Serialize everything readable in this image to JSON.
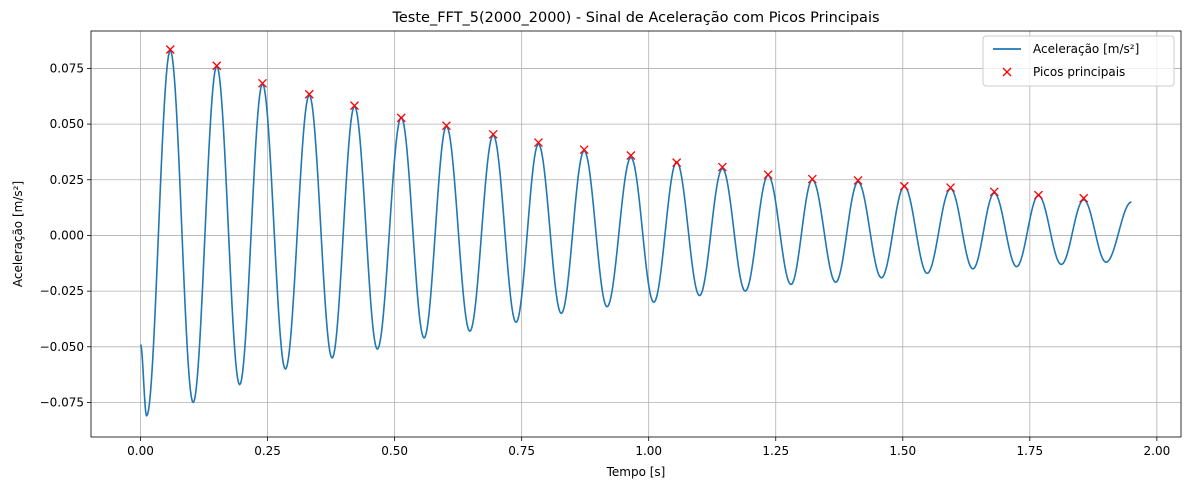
{
  "chart_data": {
    "type": "line",
    "title": "Teste_FFT_5(2000_2000) - Sinal de Aceleração com Picos Principais",
    "xlabel": "Tempo [s]",
    "ylabel": "Aceleração [m/s²]",
    "xlim": [
      -0.0975,
      2.0475
    ],
    "ylim": [
      -0.0905,
      0.0918
    ],
    "x_ticks": [
      0.0,
      0.25,
      0.5,
      0.75,
      1.0,
      1.25,
      1.5,
      1.75,
      2.0
    ],
    "x_tick_labels": [
      "0.00",
      "0.25",
      "0.50",
      "0.75",
      "1.00",
      "1.25",
      "1.50",
      "1.75",
      "2.00"
    ],
    "y_ticks": [
      -0.075,
      -0.05,
      -0.025,
      0.0,
      0.025,
      0.05,
      0.075
    ],
    "y_tick_labels": [
      "−0.075",
      "−0.050",
      "−0.025",
      "0.000",
      "0.025",
      "0.050",
      "0.075"
    ],
    "grid": true,
    "legend_position": "top-right",
    "colors": {
      "signal": "#1f77b4",
      "peaks": "#ff0000",
      "grid": "#b0b0b0"
    },
    "series": [
      {
        "name": "Aceleração [m/s²]",
        "kind": "line",
        "description": "damped oscillation sampled from 0.00 s to 1.95 s",
        "x": [
          0.0,
          0.012,
          0.0585,
          0.1035,
          0.15,
          0.195,
          0.24,
          0.285,
          0.332,
          0.377,
          0.421,
          0.466,
          0.513,
          0.558,
          0.602,
          0.648,
          0.694,
          0.739,
          0.783,
          0.828,
          0.873,
          0.918,
          0.965,
          1.01,
          1.055,
          1.1,
          1.145,
          1.19,
          1.235,
          1.28,
          1.322,
          1.368,
          1.412,
          1.458,
          1.503,
          1.548,
          1.594,
          1.638,
          1.68,
          1.724,
          1.767,
          1.812,
          1.856,
          1.9,
          1.95
        ],
        "y": [
          -0.049,
          -0.081,
          0.083,
          -0.075,
          0.076,
          -0.067,
          0.068,
          -0.06,
          0.063,
          -0.055,
          0.058,
          -0.051,
          0.053,
          -0.046,
          0.049,
          -0.043,
          0.045,
          -0.039,
          0.041,
          -0.035,
          0.038,
          -0.032,
          0.035,
          -0.03,
          0.033,
          -0.027,
          0.03,
          -0.025,
          0.027,
          -0.022,
          0.025,
          -0.021,
          0.024,
          -0.019,
          0.022,
          -0.017,
          0.021,
          -0.015,
          0.019,
          -0.014,
          0.018,
          -0.013,
          0.016,
          -0.012,
          0.015
        ]
      },
      {
        "name": "Picos principais",
        "kind": "marker",
        "marker": "x",
        "x": [
          0.0585,
          0.15,
          0.24,
          0.332,
          0.421,
          0.513,
          0.602,
          0.694,
          0.783,
          0.873,
          0.965,
          1.055,
          1.145,
          1.235,
          1.322,
          1.412,
          1.503,
          1.594,
          1.68,
          1.767,
          1.856
        ],
        "y": [
          0.0835,
          0.0762,
          0.0683,
          0.0634,
          0.0583,
          0.0528,
          0.0493,
          0.0454,
          0.0417,
          0.0385,
          0.0359,
          0.0327,
          0.0307,
          0.0273,
          0.0253,
          0.0247,
          0.0221,
          0.0215,
          0.0196,
          0.0181,
          0.0167
        ]
      }
    ]
  }
}
